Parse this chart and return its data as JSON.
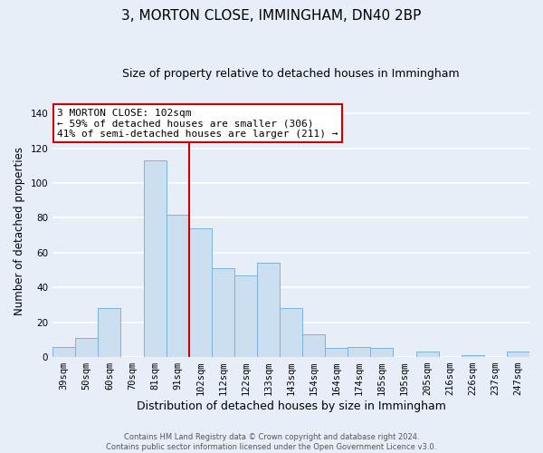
{
  "title": "3, MORTON CLOSE, IMMINGHAM, DN40 2BP",
  "subtitle": "Size of property relative to detached houses in Immingham",
  "xlabel": "Distribution of detached houses by size in Immingham",
  "ylabel": "Number of detached properties",
  "categories": [
    "39sqm",
    "50sqm",
    "60sqm",
    "70sqm",
    "81sqm",
    "91sqm",
    "102sqm",
    "112sqm",
    "122sqm",
    "133sqm",
    "143sqm",
    "154sqm",
    "164sqm",
    "174sqm",
    "185sqm",
    "195sqm",
    "205sqm",
    "216sqm",
    "226sqm",
    "237sqm",
    "247sqm"
  ],
  "values": [
    6,
    11,
    28,
    0,
    113,
    82,
    74,
    51,
    47,
    54,
    28,
    13,
    5,
    6,
    5,
    0,
    3,
    0,
    1,
    0,
    3
  ],
  "bar_color": "#ccdff0",
  "bar_edge_color": "#7ab4d8",
  "vline_x_index": 6,
  "vline_color": "#cc0000",
  "ylim": [
    0,
    145
  ],
  "yticks": [
    0,
    20,
    40,
    60,
    80,
    100,
    120,
    140
  ],
  "annotation_title": "3 MORTON CLOSE: 102sqm",
  "annotation_line1": "← 59% of detached houses are smaller (306)",
  "annotation_line2": "41% of semi-detached houses are larger (211) →",
  "annotation_box_color": "#ffffff",
  "annotation_box_edge": "#cc0000",
  "footnote1": "Contains HM Land Registry data © Crown copyright and database right 2024.",
  "footnote2": "Contains public sector information licensed under the Open Government Licence v3.0.",
  "background_color": "#e8eef8",
  "grid_color": "#ffffff",
  "title_fontsize": 11,
  "subtitle_fontsize": 9,
  "xlabel_fontsize": 9,
  "ylabel_fontsize": 8.5,
  "tick_fontsize": 7.5,
  "footnote_fontsize": 6
}
